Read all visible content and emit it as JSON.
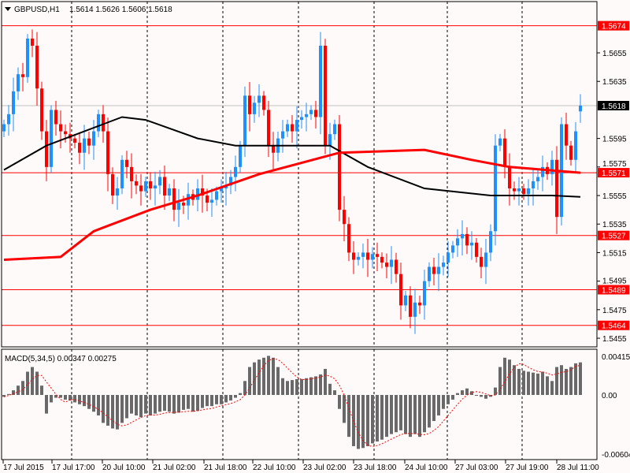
{
  "header": {
    "symbol": "GBPUSD,H1",
    "ohlc": "1.5614 1.5626 1.5606 1.5618",
    "menu_icon": "triangle-down-icon"
  },
  "colors": {
    "background": "#fffafa",
    "bull": "#1e90ff",
    "bear": "#ff0000",
    "ma_fast": "#ff0000",
    "ma_slow": "#000000",
    "level_line": "#ff0000",
    "price_line": "#c0c0c0",
    "macd_hist": "#696969",
    "macd_signal": "#ff0000"
  },
  "price_axis": {
    "ticks": [
      "1.5655",
      "1.5635",
      "1.5595",
      "1.5575",
      "1.5555",
      "1.5535",
      "1.5515",
      "1.5495",
      "1.5475",
      "1.5455"
    ],
    "levels": [
      "1.5674",
      "1.5571",
      "1.5527",
      "1.5489",
      "1.5464"
    ],
    "current_price": "1.5618"
  },
  "time_axis": {
    "labels": [
      "17 Jul 2015",
      "17 Jul 17:00",
      "20 Jul 10:00",
      "21 Jul 02:00",
      "21 Jul 18:00",
      "22 Jul 10:00",
      "23 Jul 02:00",
      "23 Jul 18:00",
      "24 Jul 10:00",
      "27 Jul 03:00",
      "27 Jul 19:00",
      "28 Jul 11:00"
    ]
  },
  "macd": {
    "title": "MACD(5,34,5) 0.00347 0.00275",
    "ticks": [
      "0.00415",
      "0.00",
      "-0.00604"
    ]
  },
  "chart_data": [
    {
      "type": "candlestick",
      "title": "GBPUSD,H1",
      "ylim": [
        1.545,
        1.569
      ],
      "grid": "vertical dashed",
      "closes": [
        1.5605,
        1.5612,
        1.5628,
        1.564,
        1.5638,
        1.5665,
        1.566,
        1.563,
        1.56,
        1.5575,
        1.5615,
        1.5605,
        1.56,
        1.5598,
        1.5595,
        1.5592,
        1.5585,
        1.5595,
        1.559,
        1.56,
        1.5612,
        1.56,
        1.557,
        1.5555,
        1.556,
        1.558,
        1.5575,
        1.5565,
        1.5562,
        1.5558,
        1.5565,
        1.556,
        1.5562,
        1.5568,
        1.5555,
        1.556,
        1.5545,
        1.555,
        1.5548,
        1.5556,
        1.5552,
        1.556,
        1.5555,
        1.555,
        1.5552,
        1.5558,
        1.556,
        1.5562,
        1.5568,
        1.5575,
        1.559,
        1.5625,
        1.5612,
        1.562,
        1.5625,
        1.5615,
        1.559,
        1.5585,
        1.5595,
        1.56,
        1.5605,
        1.56,
        1.5608,
        1.561,
        1.5612,
        1.5615,
        1.561,
        1.566,
        1.559,
        1.5598,
        1.5605,
        1.5545,
        1.5535,
        1.5515,
        1.551,
        1.5512,
        1.5515,
        1.551,
        1.5514,
        1.5512,
        1.5508,
        1.5505,
        1.551,
        1.55,
        1.5478,
        1.5485,
        1.547,
        1.548,
        1.5478,
        1.5495,
        1.5505,
        1.55,
        1.5505,
        1.5508,
        1.5515,
        1.552,
        1.5525,
        1.5528,
        1.552,
        1.5522,
        1.5512,
        1.5505,
        1.5515,
        1.553,
        1.559,
        1.5595,
        1.5575,
        1.556,
        1.5558,
        1.556,
        1.5556,
        1.556,
        1.5565,
        1.5568,
        1.5575,
        1.557,
        1.558,
        1.554,
        1.5605,
        1.559,
        1.558,
        1.56,
        1.5618
      ],
      "first_open": 1.56,
      "last_bar": {
        "open": 1.5614,
        "high": 1.5626,
        "low": 1.5606,
        "close": 1.5618
      },
      "ma_fast_red": [
        [
          0,
          1.551
        ],
        [
          12,
          1.5512
        ],
        [
          19,
          1.553
        ],
        [
          31,
          1.5545
        ],
        [
          41,
          1.5555
        ],
        [
          54,
          1.557
        ],
        [
          71,
          1.5585
        ],
        [
          89,
          1.5587
        ],
        [
          99,
          1.558
        ],
        [
          107,
          1.5575
        ],
        [
          122,
          1.5571
        ]
      ],
      "ma_slow_black": [
        [
          0,
          1.5573
        ],
        [
          9,
          1.559
        ],
        [
          21,
          1.5605
        ],
        [
          25,
          1.561
        ],
        [
          30,
          1.5608
        ],
        [
          41,
          1.5595
        ],
        [
          49,
          1.559
        ],
        [
          69,
          1.559
        ],
        [
          77,
          1.5575
        ],
        [
          89,
          1.556
        ],
        [
          103,
          1.5555
        ],
        [
          116,
          1.5555
        ],
        [
          122,
          1.5554
        ]
      ],
      "levels": [
        1.5674,
        1.5571,
        1.5527,
        1.5489,
        1.5464
      ],
      "current_price": 1.5618
    },
    {
      "type": "bar",
      "title": "MACD(5,34,5) 0.00347 0.00275",
      "ylim": [
        -0.00604,
        0.00415
      ],
      "signal_period": 5,
      "histogram": [
        -0.0002,
        0.0001,
        0.0005,
        0.001,
        0.0015,
        0.0025,
        0.003,
        0.0025,
        0.001,
        -0.002,
        -0.0008,
        -0.0003,
        -0.0003,
        -0.0005,
        -0.0006,
        -0.0008,
        -0.001,
        -0.0012,
        -0.0015,
        -0.0018,
        -0.0022,
        -0.003,
        -0.0033,
        -0.0036,
        -0.0037,
        -0.003,
        -0.0025,
        -0.002,
        -0.0022,
        -0.0024,
        -0.002,
        -0.0022,
        -0.002,
        -0.0018,
        -0.0017,
        -0.0018,
        -0.002,
        -0.0019,
        -0.0016,
        -0.0015,
        -0.0018,
        -0.0017,
        -0.0014,
        -0.0012,
        -0.0012,
        -0.001,
        -0.001,
        -0.0008,
        -0.0006,
        -0.0003,
        0.0002,
        0.0015,
        0.003,
        0.0035,
        0.0038,
        0.004,
        0.0042,
        0.004,
        0.003,
        0.0018,
        0.0015,
        0.0016,
        0.0017,
        0.0017,
        0.0018,
        0.0019,
        0.002,
        0.0022,
        0.0028,
        0.0012,
        0.0005,
        -0.0015,
        -0.003,
        -0.0045,
        -0.0055,
        -0.0058,
        -0.0057,
        -0.0055,
        -0.0052,
        -0.005,
        -0.0048,
        -0.0045,
        -0.0042,
        -0.004,
        -0.0038,
        -0.0042,
        -0.0045,
        -0.0042,
        -0.0045,
        -0.004,
        -0.0035,
        -0.0028,
        -0.0022,
        -0.0015,
        -0.001,
        -0.0005,
        0.0002,
        0.0005,
        0.0007,
        0.0004,
        0.0,
        -0.0002,
        -0.0004,
        -0.0002,
        0.0008,
        0.003,
        0.004,
        0.0038,
        0.0032,
        0.0028,
        0.0026,
        0.0025,
        0.0024,
        0.0023,
        0.0025,
        0.002,
        0.0015,
        0.003,
        0.0032,
        0.0028,
        0.003,
        0.0034,
        0.0035
      ]
    }
  ]
}
